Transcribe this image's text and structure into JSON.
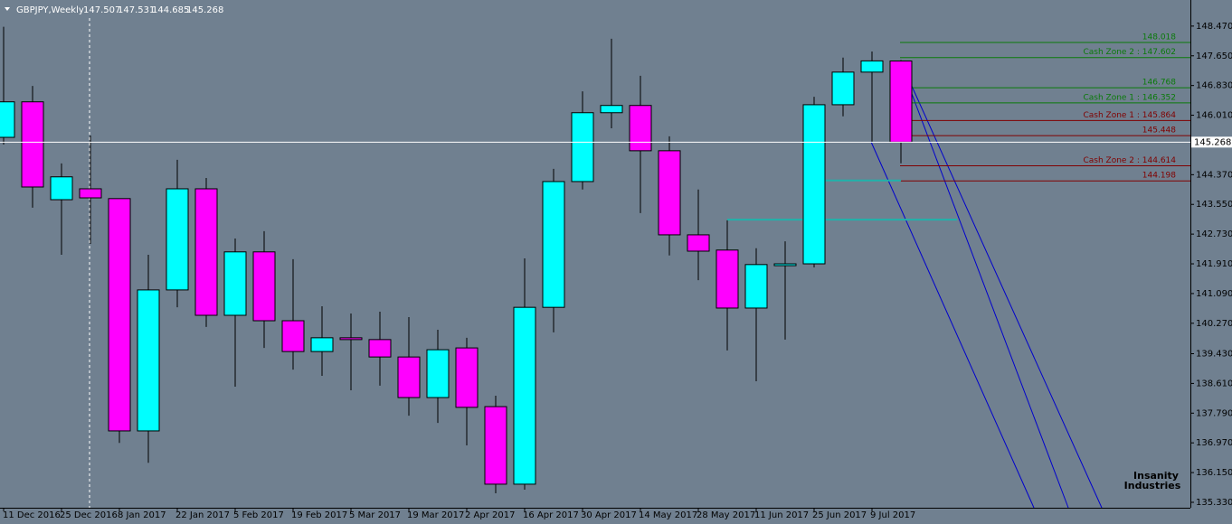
{
  "chart_data": {
    "type": "candlestick",
    "symbol": "GBPJPY,Weekly",
    "categories": [
      "11 Dec 2016",
      null,
      "25 Dec 2016",
      null,
      "8 Jan 2017",
      null,
      "22 Jan 2017",
      null,
      "5 Feb 2017",
      null,
      "19 Feb 2017",
      null,
      "5 Mar 2017",
      null,
      "19 Mar 2017",
      null,
      "2 Apr 2017",
      null,
      "16 Apr 2017",
      null,
      "30 Apr 2017",
      null,
      "14 May 2017",
      null,
      "28 May 2017",
      null,
      "11 Jun 2017",
      null,
      "25 Jun 2017",
      null,
      "9 Jul 2017",
      null
    ],
    "open": [
      145.4,
      146.38,
      143.68,
      143.98,
      143.71,
      137.3,
      141.19,
      143.98,
      140.49,
      142.24,
      140.34,
      139.49,
      139.87,
      139.82,
      139.34,
      138.22,
      139.59,
      137.97,
      135.83,
      140.71,
      144.18,
      146.08,
      146.28,
      145.03,
      142.71,
      142.29,
      140.69,
      141.86,
      141.91,
      146.3,
      147.2,
      147.507
    ],
    "high": [
      148.45,
      146.82,
      144.68,
      145.45,
      143.71,
      142.16,
      144.78,
      144.28,
      142.61,
      142.81,
      142.04,
      140.74,
      140.54,
      140.59,
      140.44,
      140.09,
      139.87,
      138.27,
      142.06,
      144.53,
      146.67,
      148.12,
      147.1,
      145.43,
      143.96,
      143.11,
      142.34,
      142.53,
      146.52,
      147.6,
      147.77,
      147.531
    ],
    "low": [
      145.2,
      143.46,
      142.16,
      142.46,
      136.97,
      136.42,
      140.71,
      140.17,
      138.52,
      139.59,
      138.99,
      138.82,
      138.42,
      138.55,
      137.72,
      137.52,
      136.9,
      135.58,
      135.68,
      140.02,
      143.96,
      145.65,
      143.31,
      142.14,
      141.46,
      139.52,
      138.67,
      139.82,
      141.81,
      145.98,
      145.28,
      144.685
    ],
    "close": [
      146.38,
      144.03,
      144.31,
      143.73,
      137.3,
      141.19,
      143.98,
      140.49,
      142.24,
      140.34,
      139.49,
      139.87,
      139.82,
      139.34,
      138.22,
      139.54,
      137.95,
      135.83,
      140.71,
      144.18,
      146.08,
      146.28,
      145.03,
      142.71,
      142.26,
      140.69,
      141.89,
      141.91,
      146.3,
      147.2,
      147.51,
      145.268
    ],
    "up_color": "#00ffff",
    "down_color": "#ff00ff",
    "ylim": [
      135.18,
      149.14
    ],
    "yticks": [
      {
        "value": 148.47,
        "label": "148.470"
      },
      {
        "value": 147.65,
        "label": "147.650"
      },
      {
        "value": 146.83,
        "label": "146.830"
      },
      {
        "value": 146.01,
        "label": "146.010"
      },
      {
        "value": 144.37,
        "label": "144.370"
      },
      {
        "value": 143.55,
        "label": "143.550"
      },
      {
        "value": 142.73,
        "label": "142.730"
      },
      {
        "value": 141.91,
        "label": "141.910"
      },
      {
        "value": 141.09,
        "label": "141.090"
      },
      {
        "value": 140.27,
        "label": "140.270"
      },
      {
        "value": 139.43,
        "label": "139.430"
      },
      {
        "value": 138.61,
        "label": "138.610"
      },
      {
        "value": 137.79,
        "label": "137.790"
      },
      {
        "value": 136.97,
        "label": "136.970"
      },
      {
        "value": 136.15,
        "label": "136.150"
      },
      {
        "value": 135.33,
        "label": "135.330"
      }
    ],
    "levels": [
      {
        "value": 148.018,
        "color": "#0a7a0a"
      },
      {
        "value": 147.602,
        "label": "Cash Zone 2 : 147.602",
        "color": "#0a7a0a"
      },
      {
        "value": 146.768,
        "color": "#0a7a0a"
      },
      {
        "value": 146.352,
        "label": "Cash Zone 1 : 146.352",
        "color": "#0a7a0a"
      },
      {
        "value": 145.864,
        "label": "Cash Zone 1 : 145.864",
        "color": "#800000"
      },
      {
        "value": 145.448,
        "color": "#800000"
      },
      {
        "value": 144.614,
        "label": "Cash Zone 2 : 144.614",
        "color": "#800000"
      },
      {
        "value": 144.198,
        "color": "#800000"
      }
    ],
    "support_levels": [
      143.13,
      144.21
    ],
    "support_color": "#20b2aa",
    "watermark": [
      "Insanity",
      "Industries"
    ]
  }
}
